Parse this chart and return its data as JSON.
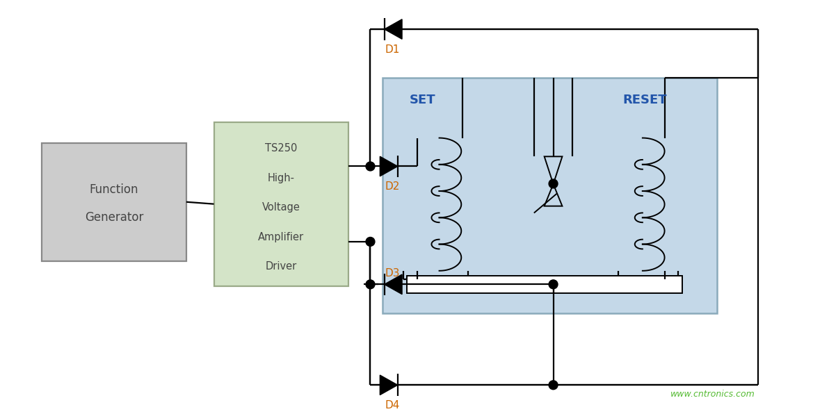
{
  "bg_color": "#ffffff",
  "line_color": "#000000",
  "amp_box_color": "#d4e4c8",
  "relay_box_color": "#c4d8e8",
  "relay_box_edge": "#8aaabb",
  "amp_box_edge": "#9aaa88",
  "fg_box_color": "#cccccc",
  "fg_box_edge": "#888888",
  "label_color_d": "#cc6600",
  "label_color_setres": "#2255aa",
  "watermark_color": "#55bb33",
  "diode_labels": [
    "D1",
    "D2",
    "D3",
    "D4"
  ],
  "fg_label_1": "Function",
  "fg_label_2": "Generator",
  "amp_label": [
    "TS250",
    "High-",
    "Voltage",
    "Amplifier",
    "Driver"
  ],
  "set_label": "SET",
  "reset_label": "RESET",
  "watermark": "www.cntronics.com",
  "lw": 1.6
}
